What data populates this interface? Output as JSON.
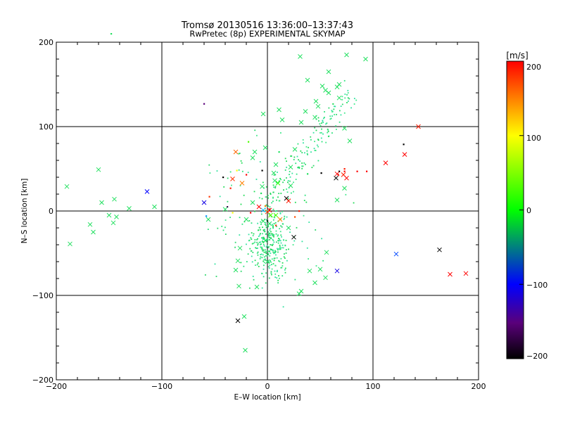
{
  "chart_data": {
    "type": "scatter",
    "title": "Tromsø 20130516 13:36:00–13:37:43",
    "subtitle": "RwPretec (8p) EXPERIMENTAL SKYMAP",
    "xlabel": "E–W location [km]",
    "ylabel": "N–S location [km]",
    "xlim": [
      -200,
      200
    ],
    "ylim": [
      -200,
      200
    ],
    "xticks": [
      "−200",
      "−100",
      "0",
      "100",
      "200"
    ],
    "yticks": [
      "−200",
      "−100",
      "0",
      "100",
      "200"
    ],
    "grid": true,
    "colorbar": {
      "label": "[m/s]",
      "range": [
        -200,
        200
      ],
      "ticks": [
        "200",
        "100",
        "0",
        "−100",
        "−200"
      ]
    },
    "crosses": [
      [
        -190,
        29,
        0
      ],
      [
        -187,
        -39,
        0
      ],
      [
        -160,
        49,
        0
      ],
      [
        -157,
        10,
        0
      ],
      [
        -168,
        -16,
        0
      ],
      [
        -165,
        -25,
        0
      ],
      [
        -150,
        -5,
        0
      ],
      [
        -145,
        14,
        0
      ],
      [
        -146,
        -14,
        0
      ],
      [
        -143,
        -7,
        0
      ],
      [
        -131,
        3,
        0
      ],
      [
        -114,
        23,
        -100
      ],
      [
        -107,
        5,
        0
      ],
      [
        -60,
        10,
        -110
      ],
      [
        -56,
        -10,
        0
      ],
      [
        -33,
        38,
        180
      ],
      [
        -30,
        70,
        160
      ],
      [
        -24,
        33,
        150
      ],
      [
        -14,
        63,
        0
      ],
      [
        -12,
        70,
        0
      ],
      [
        -8,
        5,
        200
      ],
      [
        -4,
        1,
        -50
      ],
      [
        -5,
        29,
        0
      ],
      [
        -2,
        75,
        0
      ],
      [
        0,
        -1,
        180
      ],
      [
        2,
        1,
        200
      ],
      [
        3,
        -5,
        30
      ],
      [
        6,
        45,
        0
      ],
      [
        7,
        36,
        0
      ],
      [
        8,
        55,
        0
      ],
      [
        10,
        33,
        10
      ],
      [
        -14,
        10,
        0
      ],
      [
        -20,
        -10,
        0
      ],
      [
        -26,
        -44,
        0
      ],
      [
        -28,
        -59,
        0
      ],
      [
        -27,
        -89,
        0
      ],
      [
        -28,
        -130,
        -200
      ],
      [
        -22,
        -125,
        0
      ],
      [
        -21,
        -165,
        0
      ],
      [
        -30,
        -70,
        0
      ],
      [
        -10,
        -90,
        0
      ],
      [
        8,
        -5,
        30
      ],
      [
        12,
        -10,
        150
      ],
      [
        18,
        15,
        -200
      ],
      [
        20,
        12,
        190
      ],
      [
        22,
        30,
        0
      ],
      [
        20,
        -20,
        0
      ],
      [
        25,
        -31,
        -200
      ],
      [
        30,
        -98,
        0
      ],
      [
        32,
        -95,
        0
      ],
      [
        40,
        -71,
        0
      ],
      [
        45,
        -85,
        0
      ],
      [
        50,
        -69,
        0
      ],
      [
        55,
        -79,
        0
      ],
      [
        56,
        -49,
        0
      ],
      [
        58,
        165,
        0
      ],
      [
        66,
        147,
        0
      ],
      [
        75,
        185,
        0
      ],
      [
        68,
        150,
        0
      ],
      [
        73,
        98,
        0
      ],
      [
        78,
        83,
        0
      ],
      [
        68,
        134,
        0
      ],
      [
        65,
        39,
        -200
      ],
      [
        66,
        44,
        200
      ],
      [
        72,
        43,
        190
      ],
      [
        75,
        39,
        200
      ],
      [
        73,
        27,
        0
      ],
      [
        66,
        13,
        0
      ],
      [
        66,
        -71,
        -110
      ],
      [
        93,
        180,
        0
      ],
      [
        112,
        57,
        200
      ],
      [
        130,
        67,
        200
      ],
      [
        143,
        100,
        190
      ],
      [
        122,
        -51,
        -80
      ],
      [
        163,
        -46,
        -200
      ],
      [
        173,
        -75,
        200
      ],
      [
        188,
        -74,
        200
      ],
      [
        -4,
        115,
        0
      ],
      [
        11,
        120,
        0
      ],
      [
        14,
        108,
        0
      ],
      [
        46,
        130,
        0
      ],
      [
        52,
        148,
        0
      ],
      [
        55,
        143,
        0
      ],
      [
        58,
        140,
        0
      ],
      [
        36,
        118,
        0
      ],
      [
        32,
        105,
        0
      ],
      [
        26,
        73,
        0
      ],
      [
        22,
        52,
        0
      ],
      [
        31,
        183,
        0
      ],
      [
        38,
        155,
        0
      ],
      [
        45,
        111,
        0
      ],
      [
        48,
        124,
        0
      ],
      [
        -40,
        2,
        0
      ],
      [
        -2,
        -35,
        0
      ],
      [
        0,
        -60,
        0
      ],
      [
        -4,
        -12,
        0
      ],
      [
        2,
        -15,
        0
      ]
    ],
    "dots": [
      [
        -148,
        210,
        0
      ],
      [
        -60,
        127,
        -150
      ],
      [
        -55,
        17,
        180
      ],
      [
        -58,
        -6,
        -60
      ],
      [
        -42,
        40,
        -200
      ],
      [
        -38,
        5,
        -170
      ],
      [
        -35,
        27,
        190
      ],
      [
        -33,
        -2,
        100
      ],
      [
        -29,
        48,
        100
      ],
      [
        -20,
        43,
        200
      ],
      [
        -16,
        -2,
        200
      ],
      [
        -5,
        48,
        -200
      ],
      [
        -2,
        6,
        150
      ],
      [
        0,
        -12,
        -200
      ],
      [
        2,
        2,
        190
      ],
      [
        8,
        -17,
        180
      ],
      [
        11,
        70,
        0
      ],
      [
        26,
        -7,
        170
      ],
      [
        30,
        0,
        190
      ],
      [
        51,
        45,
        -200
      ],
      [
        67,
        43,
        200
      ],
      [
        68,
        47,
        -200
      ],
      [
        73,
        47,
        200
      ],
      [
        73,
        50,
        190
      ],
      [
        85,
        47,
        200
      ],
      [
        94,
        47,
        200
      ],
      [
        129,
        79,
        -200
      ],
      [
        -18,
        82,
        30
      ],
      [
        -6,
        21,
        0
      ],
      [
        38,
        44,
        0
      ]
    ],
    "dot_cloud": {
      "count": 560,
      "value": 0
    }
  }
}
